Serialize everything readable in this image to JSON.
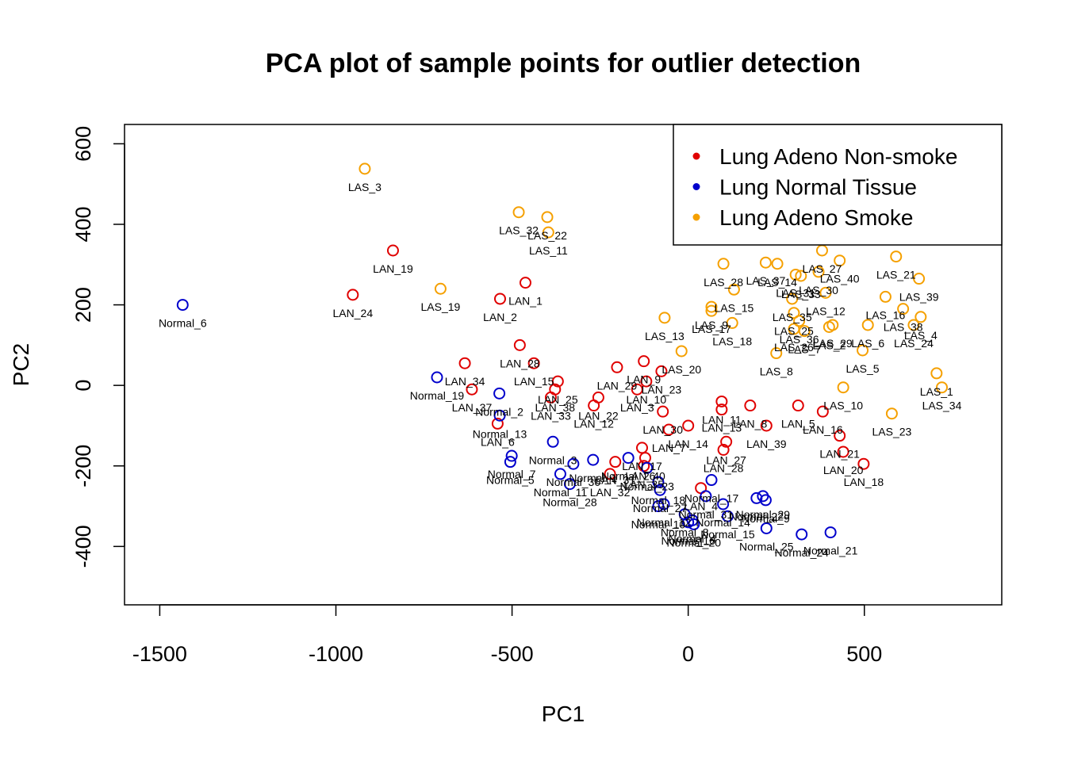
{
  "chart_data": {
    "type": "scatter",
    "title": "PCA plot of sample points for outlier detection",
    "xlabel": "PC1",
    "ylabel": "PC2",
    "xlim": [
      -1600,
      890
    ],
    "ylim": [
      -545,
      648
    ],
    "xticks": [
      -1500,
      -1000,
      -500,
      0,
      500
    ],
    "yticks": [
      -400,
      -200,
      0,
      200,
      400,
      600
    ],
    "grid": false,
    "legend_position": "top-right",
    "series": [
      {
        "name": "Lung Adeno Non-smoke",
        "color": "#e00000",
        "points": [
          {
            "label": "LAN_19",
            "x": -838,
            "y": 335
          },
          {
            "label": "LAN_24",
            "x": -952,
            "y": 225
          },
          {
            "label": "LAN_1",
            "x": -462,
            "y": 255
          },
          {
            "label": "LAN_2",
            "x": -534,
            "y": 215
          },
          {
            "label": "LAN_28",
            "x": -478,
            "y": 100
          },
          {
            "label": "LAN_34",
            "x": -634,
            "y": 55
          },
          {
            "label": "LAN_37",
            "x": -614,
            "y": -10
          },
          {
            "label": "LAN_6",
            "x": -541,
            "y": -95
          },
          {
            "label": "LAN_15",
            "x": -438,
            "y": 55
          },
          {
            "label": "LAN_25",
            "x": -370,
            "y": 10
          },
          {
            "label": "LAN_38",
            "x": -378,
            "y": -10
          },
          {
            "label": "LAN_33",
            "x": -390,
            "y": -30
          },
          {
            "label": "LAN_22",
            "x": -255,
            "y": -30
          },
          {
            "label": "LAN_12",
            "x": -268,
            "y": -50
          },
          {
            "label": "LAN_29",
            "x": -202,
            "y": 45
          },
          {
            "label": "LAN_9",
            "x": -126,
            "y": 60
          },
          {
            "label": "LAN_10",
            "x": -119,
            "y": 10
          },
          {
            "label": "LAN_3",
            "x": -145,
            "y": -10
          },
          {
            "label": "LAN_30",
            "x": -72,
            "y": -65
          },
          {
            "label": "LAN_7",
            "x": -55,
            "y": -110
          },
          {
            "label": "LAN_17",
            "x": -131,
            "y": -155
          },
          {
            "label": "LAN_40",
            "x": -122,
            "y": -180
          },
          {
            "label": "LAN_31",
            "x": -207,
            "y": -190
          },
          {
            "label": "LAN_32",
            "x": -222,
            "y": -220
          },
          {
            "label": "LAN_35",
            "x": -126,
            "y": -200
          },
          {
            "label": "LAN_4",
            "x": 36,
            "y": -255
          },
          {
            "label": "LAN_11",
            "x": 95,
            "y": -40
          },
          {
            "label": "LAN_13",
            "x": 95,
            "y": -60
          },
          {
            "label": "LAN_8",
            "x": 176,
            "y": -50
          },
          {
            "label": "LAN_27",
            "x": 108,
            "y": -140
          },
          {
            "label": "LAN_28b",
            "x": 100,
            "y": -160
          },
          {
            "label": "LAN_39",
            "x": 222,
            "y": -100
          },
          {
            "label": "LAN_5",
            "x": 312,
            "y": -50
          },
          {
            "label": "LAN_16",
            "x": 382,
            "y": -65
          },
          {
            "label": "LAN_21",
            "x": 430,
            "y": -125
          },
          {
            "label": "LAN_20",
            "x": 440,
            "y": -165
          },
          {
            "label": "LAN_18",
            "x": 498,
            "y": -195
          },
          {
            "label": "LAN_14",
            "x": 0,
            "y": -100
          },
          {
            "label": "LAN_23",
            "x": -76,
            "y": 35
          }
        ]
      },
      {
        "name": "Lung Normal Tissue",
        "color": "#0000cc",
        "points": [
          {
            "label": "Normal_6",
            "x": -1435,
            "y": 200
          },
          {
            "label": "Normal_19",
            "x": -713,
            "y": 20
          },
          {
            "label": "Normal_2",
            "x": -536,
            "y": -20
          },
          {
            "label": "Normal_13",
            "x": -535,
            "y": -75
          },
          {
            "label": "Normal_7",
            "x": -501,
            "y": -175
          },
          {
            "label": "Normal_5",
            "x": -505,
            "y": -190
          },
          {
            "label": "Normal_3",
            "x": -384,
            "y": -140
          },
          {
            "label": "Normal_11",
            "x": -363,
            "y": -220
          },
          {
            "label": "Normal_30",
            "x": -326,
            "y": -195
          },
          {
            "label": "Normal_28",
            "x": -336,
            "y": -245
          },
          {
            "label": "Normal_1",
            "x": -270,
            "y": -185
          },
          {
            "label": "Normal_26",
            "x": -170,
            "y": -180
          },
          {
            "label": "Normal_23",
            "x": -117,
            "y": -205
          },
          {
            "label": "Normal_18",
            "x": -85,
            "y": -240
          },
          {
            "label": "Normal_27",
            "x": -80,
            "y": -260
          },
          {
            "label": "Normal_12",
            "x": -69,
            "y": -295
          },
          {
            "label": "Normal_10",
            "x": -85,
            "y": -300
          },
          {
            "label": "Normal_8",
            "x": -10,
            "y": -320
          },
          {
            "label": "Normal_16",
            "x": 0,
            "y": -340
          },
          {
            "label": "Normal_4",
            "x": 12,
            "y": -335
          },
          {
            "label": "Normal_31",
            "x": 50,
            "y": -275
          },
          {
            "label": "Normal_17",
            "x": 66,
            "y": -235
          },
          {
            "label": "Normal_14",
            "x": 99,
            "y": -295
          },
          {
            "label": "Normal_15",
            "x": 112,
            "y": -325
          },
          {
            "label": "Normal_22",
            "x": 194,
            "y": -280
          },
          {
            "label": "Normal_29",
            "x": 212,
            "y": -275
          },
          {
            "label": "Normal_9",
            "x": 220,
            "y": -285
          },
          {
            "label": "Normal_25",
            "x": 222,
            "y": -355
          },
          {
            "label": "Normal_24",
            "x": 322,
            "y": -370
          },
          {
            "label": "Normal_21",
            "x": 404,
            "y": -365
          },
          {
            "label": "Normal_20",
            "x": 16,
            "y": -345
          }
        ]
      },
      {
        "name": "Lung Adeno Smoke",
        "color": "#f5a000",
        "points": [
          {
            "label": "LAS_3",
            "x": -918,
            "y": 538
          },
          {
            "label": "LAS_32",
            "x": -481,
            "y": 430
          },
          {
            "label": "LAS_22",
            "x": -400,
            "y": 418
          },
          {
            "label": "LAS_11",
            "x": -397,
            "y": 380
          },
          {
            "label": "LAS_19",
            "x": -703,
            "y": 240
          },
          {
            "label": "LAS_13",
            "x": -67,
            "y": 168
          },
          {
            "label": "LAS_20",
            "x": -19,
            "y": 85
          },
          {
            "label": "LAS_28",
            "x": 100,
            "y": 302
          },
          {
            "label": "LAS_15",
            "x": 130,
            "y": 238
          },
          {
            "label": "LAS_9",
            "x": 66,
            "y": 195
          },
          {
            "label": "LAS_17",
            "x": 66,
            "y": 185
          },
          {
            "label": "LAS_18",
            "x": 125,
            "y": 155
          },
          {
            "label": "LAS_37",
            "x": 220,
            "y": 305
          },
          {
            "label": "LAS_14",
            "x": 253,
            "y": 302
          },
          {
            "label": "LAS_31",
            "x": 305,
            "y": 275
          },
          {
            "label": "LAS_33",
            "x": 320,
            "y": 272
          },
          {
            "label": "LAS_35",
            "x": 295,
            "y": 215
          },
          {
            "label": "LAS_25",
            "x": 300,
            "y": 180
          },
          {
            "label": "LAS_36",
            "x": 315,
            "y": 160
          },
          {
            "label": "LAS_26",
            "x": 300,
            "y": 140
          },
          {
            "label": "LAS_7",
            "x": 330,
            "y": 135
          },
          {
            "label": "LAS_8",
            "x": 250,
            "y": 80
          },
          {
            "label": "LAS_27",
            "x": 380,
            "y": 335
          },
          {
            "label": "LAS_30",
            "x": 370,
            "y": 282
          },
          {
            "label": "LAS_40",
            "x": 430,
            "y": 310
          },
          {
            "label": "LAS_12",
            "x": 390,
            "y": 230
          },
          {
            "label": "LAS_29",
            "x": 410,
            "y": 150
          },
          {
            "label": "LAS_2",
            "x": 400,
            "y": 145
          },
          {
            "label": "LAS_5",
            "x": 495,
            "y": 87
          },
          {
            "label": "LAS_10",
            "x": 440,
            "y": -5
          },
          {
            "label": "LAS_21",
            "x": 590,
            "y": 320
          },
          {
            "label": "LAS_39",
            "x": 655,
            "y": 265
          },
          {
            "label": "LAS_16",
            "x": 560,
            "y": 220
          },
          {
            "label": "LAS_38",
            "x": 610,
            "y": 190
          },
          {
            "label": "LAS_4",
            "x": 660,
            "y": 170
          },
          {
            "label": "LAS_6",
            "x": 510,
            "y": 150
          },
          {
            "label": "LAS_24",
            "x": 640,
            "y": 150
          },
          {
            "label": "LAS_1",
            "x": 705,
            "y": 30
          },
          {
            "label": "LAS_34",
            "x": 720,
            "y": -5
          },
          {
            "label": "LAS_23",
            "x": 578,
            "y": -70
          }
        ]
      }
    ]
  }
}
